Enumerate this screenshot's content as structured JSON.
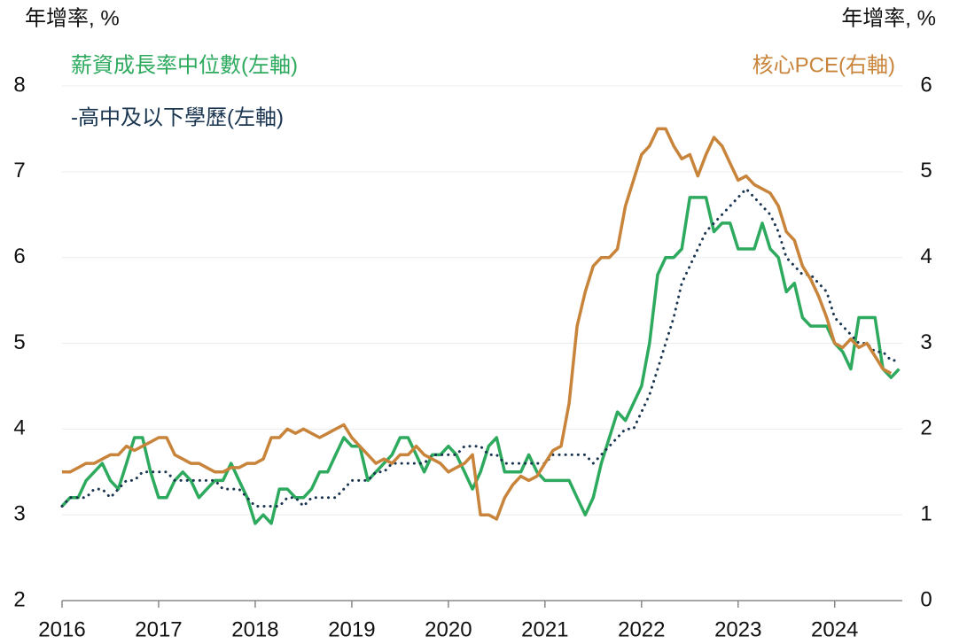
{
  "chart_data": {
    "type": "line",
    "ylabel": "年增率, %",
    "y2label": "年增率, %",
    "x": [
      2016,
      2016.083,
      2016.167,
      2016.25,
      2016.333,
      2016.417,
      2016.5,
      2016.583,
      2016.667,
      2016.75,
      2016.833,
      2016.917,
      2017,
      2017.083,
      2017.167,
      2017.25,
      2017.333,
      2017.417,
      2017.5,
      2017.583,
      2017.667,
      2017.75,
      2017.833,
      2017.917,
      2018,
      2018.083,
      2018.167,
      2018.25,
      2018.333,
      2018.417,
      2018.5,
      2018.583,
      2018.667,
      2018.75,
      2018.833,
      2018.917,
      2019,
      2019.083,
      2019.167,
      2019.25,
      2019.333,
      2019.417,
      2019.5,
      2019.583,
      2019.667,
      2019.75,
      2019.833,
      2019.917,
      2020,
      2020.083,
      2020.167,
      2020.25,
      2020.333,
      2020.417,
      2020.5,
      2020.583,
      2020.667,
      2020.75,
      2020.833,
      2020.917,
      2021,
      2021.083,
      2021.167,
      2021.25,
      2021.333,
      2021.417,
      2021.5,
      2021.583,
      2021.667,
      2021.75,
      2021.833,
      2021.917,
      2022,
      2022.083,
      2022.167,
      2022.25,
      2022.333,
      2022.417,
      2022.5,
      2022.583,
      2022.667,
      2022.75,
      2022.833,
      2022.917,
      2023,
      2023.083,
      2023.167,
      2023.25,
      2023.333,
      2023.417,
      2023.5,
      2023.583,
      2023.667,
      2023.75,
      2023.833,
      2023.917,
      2024,
      2024.083,
      2024.167,
      2024.25,
      2024.333,
      2024.417,
      2024.5,
      2024.583,
      2024.667
    ],
    "series": [
      {
        "name": "薪資成長率中位數(左軸)",
        "color": "#2eaa5f",
        "axis": "y",
        "dash": false,
        "values": [
          3.1,
          3.2,
          3.2,
          3.4,
          3.5,
          3.6,
          3.4,
          3.3,
          3.6,
          3.9,
          3.9,
          3.5,
          3.2,
          3.2,
          3.4,
          3.5,
          3.4,
          3.2,
          3.3,
          3.4,
          3.4,
          3.6,
          3.4,
          3.2,
          2.9,
          3.0,
          2.9,
          3.3,
          3.3,
          3.2,
          3.2,
          3.3,
          3.5,
          3.5,
          3.7,
          3.9,
          3.8,
          3.8,
          3.4,
          3.5,
          3.6,
          3.7,
          3.9,
          3.9,
          3.7,
          3.5,
          3.7,
          3.7,
          3.8,
          3.7,
          3.5,
          3.3,
          3.5,
          3.8,
          3.9,
          3.5,
          3.5,
          3.5,
          3.7,
          3.5,
          3.4,
          3.4,
          3.4,
          3.4,
          3.2,
          3.0,
          3.2,
          3.6,
          3.9,
          4.2,
          4.1,
          4.3,
          4.5,
          5.0,
          5.8,
          6.0,
          6.0,
          6.1,
          6.7,
          6.7,
          6.7,
          6.3,
          6.4,
          6.4,
          6.1,
          6.1,
          6.1,
          6.4,
          6.1,
          6.0,
          5.6,
          5.7,
          5.3,
          5.2,
          5.2,
          5.2,
          5.0,
          4.9,
          4.7,
          5.3,
          5.3,
          5.3,
          4.7,
          4.6,
          4.7
        ]
      },
      {
        "name": "-高中及以下學歷(左軸)",
        "color": "#1a3550",
        "axis": "y",
        "dash": true,
        "values": [
          3.1,
          3.2,
          3.2,
          3.2,
          3.3,
          3.3,
          3.2,
          3.3,
          3.4,
          3.4,
          3.5,
          3.5,
          3.5,
          3.5,
          3.4,
          3.4,
          3.4,
          3.4,
          3.4,
          3.4,
          3.3,
          3.3,
          3.3,
          3.2,
          3.1,
          3.1,
          3.1,
          3.1,
          3.2,
          3.2,
          3.1,
          3.2,
          3.2,
          3.2,
          3.2,
          3.3,
          3.4,
          3.4,
          3.4,
          3.5,
          3.5,
          3.6,
          3.6,
          3.6,
          3.6,
          3.6,
          3.7,
          3.7,
          3.7,
          3.7,
          3.8,
          3.8,
          3.8,
          3.7,
          3.7,
          3.6,
          3.6,
          3.6,
          3.6,
          3.6,
          3.6,
          3.7,
          3.7,
          3.7,
          3.7,
          3.7,
          3.6,
          3.7,
          3.8,
          3.9,
          4.0,
          4.0,
          4.2,
          4.4,
          4.7,
          5.0,
          5.3,
          5.7,
          5.9,
          6.1,
          6.3,
          6.4,
          6.5,
          6.6,
          6.7,
          6.8,
          6.7,
          6.6,
          6.5,
          6.3,
          6.0,
          5.9,
          5.8,
          5.8,
          5.7,
          5.6,
          5.3,
          5.2,
          5.1,
          5.0,
          5.0,
          4.9,
          4.9,
          4.8,
          4.8
        ]
      },
      {
        "name": "核心PCE(右軸)",
        "color": "#c8843a",
        "axis": "y2",
        "dash": false,
        "values": [
          1.5,
          1.5,
          1.55,
          1.6,
          1.6,
          1.65,
          1.7,
          1.7,
          1.8,
          1.75,
          1.8,
          1.85,
          1.9,
          1.9,
          1.7,
          1.65,
          1.6,
          1.6,
          1.55,
          1.5,
          1.5,
          1.55,
          1.55,
          1.6,
          1.6,
          1.65,
          1.9,
          1.9,
          2.0,
          1.95,
          2.0,
          1.95,
          1.9,
          1.95,
          2.0,
          2.05,
          1.9,
          1.8,
          1.7,
          1.6,
          1.65,
          1.6,
          1.7,
          1.7,
          1.8,
          1.7,
          1.65,
          1.6,
          1.5,
          1.55,
          1.6,
          1.7,
          1.0,
          1.0,
          0.95,
          1.2,
          1.35,
          1.45,
          1.4,
          1.45,
          1.6,
          1.75,
          1.8,
          2.3,
          3.2,
          3.6,
          3.9,
          4.0,
          4.0,
          4.1,
          4.6,
          4.9,
          5.2,
          5.3,
          5.5,
          5.5,
          5.3,
          5.15,
          5.2,
          4.95,
          5.2,
          5.4,
          5.3,
          5.1,
          4.9,
          4.95,
          4.85,
          4.8,
          4.75,
          4.6,
          4.3,
          4.2,
          3.9,
          3.75,
          3.55,
          3.3,
          3.0,
          2.95,
          3.05,
          2.95,
          3.0,
          2.85,
          2.7,
          2.65,
          null
        ]
      }
    ],
    "xlim": [
      2016,
      2024.7
    ],
    "xticks": [
      2016,
      2017,
      2018,
      2019,
      2020,
      2021,
      2022,
      2023,
      2024
    ],
    "ylim": [
      2,
      8
    ],
    "yticks": [
      2,
      3,
      4,
      5,
      6,
      7,
      8
    ],
    "y2lim": [
      0,
      6
    ],
    "y2ticks": [
      0,
      1,
      2,
      3,
      4,
      5,
      6
    ],
    "grid": true
  }
}
